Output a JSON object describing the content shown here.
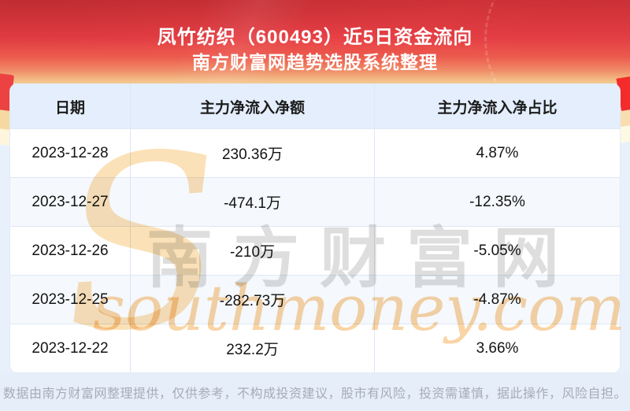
{
  "header": {
    "title_line1": "凤竹纺织（600493）近5日资金流向",
    "title_line2": "南方财富网趋势选股系统整理"
  },
  "table": {
    "columns": [
      "日期",
      "主力净流入净额",
      "主力净流入净占比"
    ],
    "rows": [
      {
        "date": "2023-12-28",
        "amount": "230.36万",
        "ratio": "4.87%"
      },
      {
        "date": "2023-12-27",
        "amount": "-474.1万",
        "ratio": "-12.35%"
      },
      {
        "date": "2023-12-26",
        "amount": "-210万",
        "ratio": "-5.05%"
      },
      {
        "date": "2023-12-25",
        "amount": "-282.73万",
        "ratio": "-4.87%"
      },
      {
        "date": "2023-12-22",
        "amount": "232.2万",
        "ratio": "3.66%"
      }
    ]
  },
  "watermark": {
    "cn": "南方财富网",
    "en": "southmoney.com",
    "s_glyph": "S"
  },
  "footer": {
    "disclaimer": "数据由南方财富网整理提供，仅供参考，不构成投资建议，股市有风险，投资需谨慎，据此操作，风险自担。"
  },
  "colors": {
    "banner_red": "#e84146",
    "banner_fade": "#f5ca95",
    "page_blue": "#e8f1fb",
    "header_row_bg": "#e4eefc",
    "alt_row_bg": "#f5f8fc",
    "divider": "#dce6f4",
    "footer_text": "#a6acb8",
    "watermark_grey": "#c9c9c9",
    "watermark_orange": "#f8c98e"
  },
  "chart_data": {
    "type": "table",
    "title": "凤竹纺织（600493）近5日资金流向",
    "subtitle": "南方财富网趋势选股系统整理",
    "columns": [
      "日期",
      "主力净流入净额",
      "主力净流入净占比"
    ],
    "rows": [
      [
        "2023-12-28",
        "230.36万",
        "4.87%"
      ],
      [
        "2023-12-27",
        "-474.1万",
        "-12.35%"
      ],
      [
        "2023-12-26",
        "-210万",
        "-5.05%"
      ],
      [
        "2023-12-25",
        "-282.73万",
        "-4.87%"
      ],
      [
        "2023-12-22",
        "232.2万",
        "3.66%"
      ]
    ]
  }
}
